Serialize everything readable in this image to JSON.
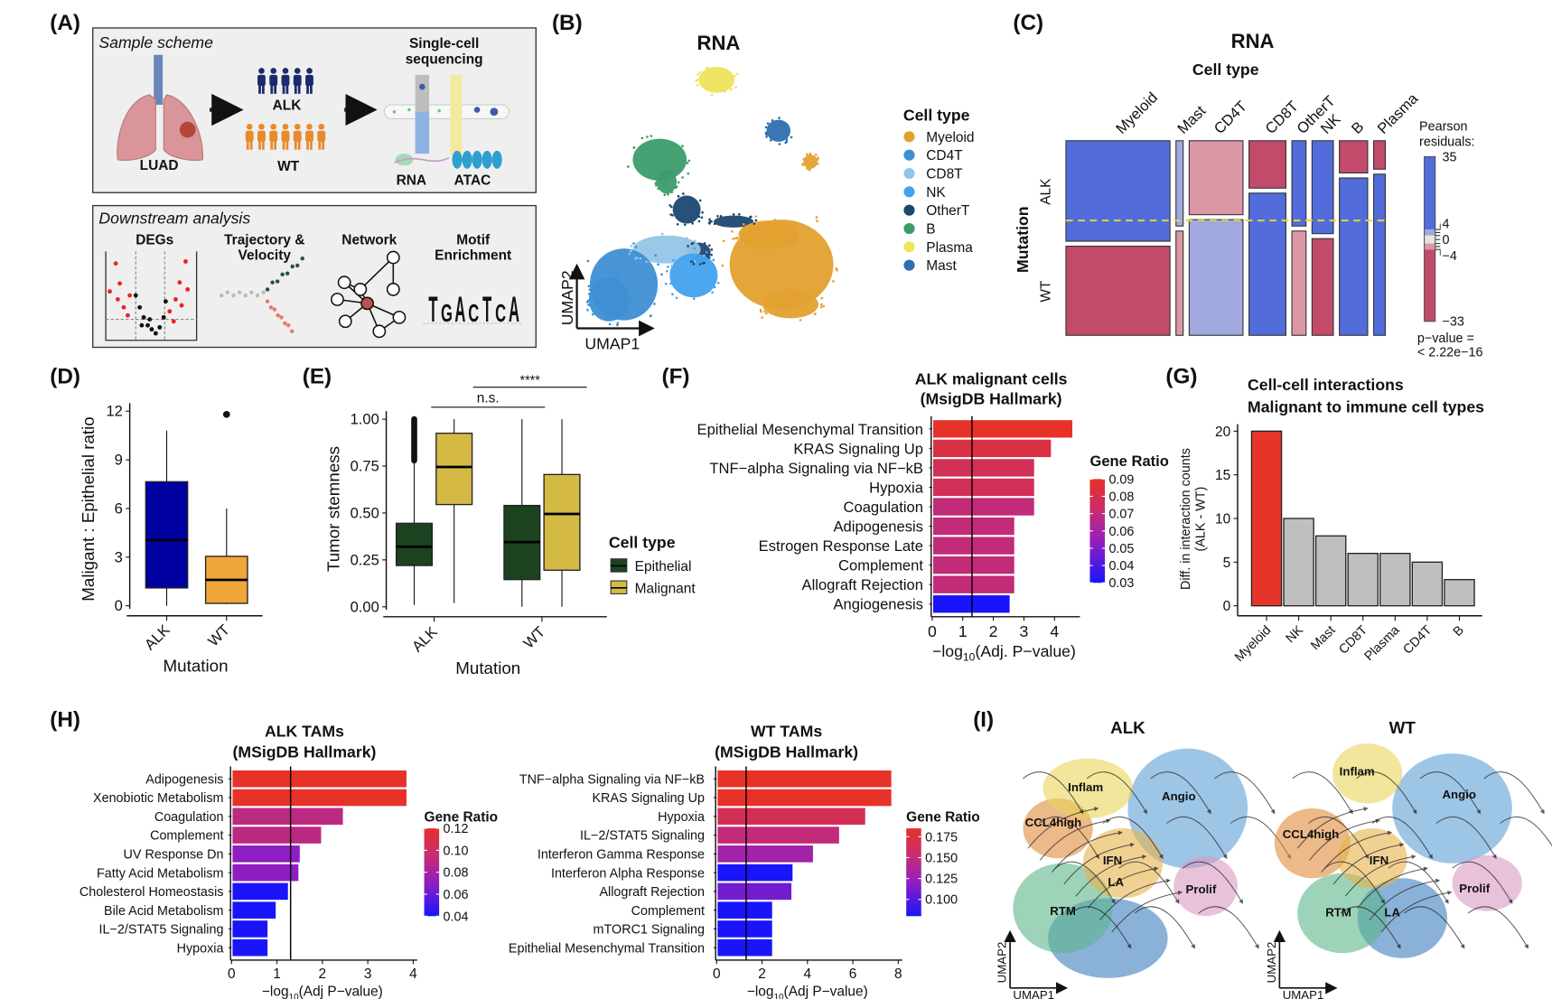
{
  "panel_labels": [
    "(A)",
    "(B)",
    "(C)",
    "(D)",
    "(E)",
    "(F)",
    "(G)",
    "(H)",
    "(I)"
  ],
  "panel_a": {
    "sample_scheme": "Sample scheme",
    "luad": "LUAD",
    "alk": "ALK",
    "wt": "WT",
    "single_cell_line1": "Single-cell",
    "single_cell_line2": "sequencing",
    "rna": "RNA",
    "atac": "ATAC",
    "downstream": "Downstream analysis",
    "degs": "DEGs",
    "trajectory_line1": "Trajectory &",
    "trajectory_line2": "Velocity",
    "network": "Network",
    "motif_line1": "Motif",
    "motif_line2": "Enrichment",
    "motif_letters": [
      "T",
      "G",
      "A",
      "C",
      "T",
      "C",
      "A"
    ],
    "colors": {
      "alk_people": "#1B2A6B",
      "wt_people": "#E8892B",
      "lung": "#D9959A",
      "tumor": "#B5473A"
    }
  },
  "chart_data": [
    {
      "id": "B",
      "type": "scatter",
      "title": "RNA",
      "xlabel": "UMAP1",
      "ylabel": "UMAP2",
      "legend_title": "Cell type",
      "legend_position": "right",
      "categories": [
        {
          "name": "Myeloid",
          "color": "#E3A02F"
        },
        {
          "name": "CD4T",
          "color": "#3E8ED3"
        },
        {
          "name": "CD8T",
          "color": "#93C5E8"
        },
        {
          "name": "NK",
          "color": "#43A2EE"
        },
        {
          "name": "OtherT",
          "color": "#1D4870"
        },
        {
          "name": "B",
          "color": "#3C9C6C"
        },
        {
          "name": "Plasma",
          "color": "#ECE45A"
        },
        {
          "name": "Mast",
          "color": "#2F6EB0"
        }
      ]
    },
    {
      "id": "C",
      "type": "mosaic",
      "title": "RNA",
      "xlabel": "Cell type",
      "ylabel": "Mutation",
      "rows": [
        "ALK",
        "WT"
      ],
      "columns": [
        {
          "name": "Myeloid",
          "share": 0.375,
          "alk_fraction": 0.53,
          "alk_residual": "strong-positive",
          "wt_residual": "strong-negative"
        },
        {
          "name": "Mast",
          "share": 0.026,
          "alk_fraction": 0.45,
          "alk_residual": "weak-positive",
          "wt_residual": "weak-negative"
        },
        {
          "name": "CD4T",
          "share": 0.194,
          "alk_fraction": 0.39,
          "alk_residual": "weak-negative",
          "wt_residual": "weak-positive"
        },
        {
          "name": "CD8T",
          "share": 0.133,
          "alk_fraction": 0.25,
          "alk_residual": "strong-negative",
          "wt_residual": "strong-positive"
        },
        {
          "name": "OtherT",
          "share": 0.051,
          "alk_fraction": 0.45,
          "alk_residual": "strong-positive",
          "wt_residual": "weak-negative"
        },
        {
          "name": "NK",
          "share": 0.077,
          "alk_fraction": 0.49,
          "alk_residual": "strong-positive",
          "wt_residual": "strong-negative"
        },
        {
          "name": "B",
          "share": 0.102,
          "alk_fraction": 0.17,
          "alk_residual": "strong-negative",
          "wt_residual": "strong-positive"
        },
        {
          "name": "Plasma",
          "share": 0.042,
          "alk_fraction": 0.15,
          "alk_residual": "strong-negative",
          "wt_residual": "strong-positive"
        }
      ],
      "residual_colors": {
        "strong-positive": "#526CDB",
        "weak-positive": "#A0A8E0",
        "weak-negative": "#DC97A4",
        "strong-negative": "#C24A6A"
      },
      "legend_title_line1": "Pearson",
      "legend_title_line2": "residuals:",
      "legend_ticks": [
        "35",
        "4",
        "0",
        "−4",
        "−33"
      ],
      "pvalue_line1": "p−value =",
      "pvalue_line2": "< 2.22e−16"
    },
    {
      "id": "D",
      "type": "box",
      "xlabel": "Mutation",
      "ylabel": "Maligant : Epithelial ratio",
      "ylim": [
        0,
        12
      ],
      "yticks": [
        0,
        3,
        6,
        9,
        12
      ],
      "categories": [
        "ALK",
        "WT"
      ],
      "boxes": [
        {
          "name": "ALK",
          "min": 0,
          "q1": 1.1,
          "median": 4.05,
          "q3": 7.65,
          "max": 10.8,
          "outliers": [],
          "color": "#0000A0"
        },
        {
          "name": "WT",
          "min": 0.1,
          "q1": 0.15,
          "median": 1.6,
          "q3": 3.05,
          "max": 6.0,
          "outliers": [
            11.8
          ],
          "color": "#F0A638"
        }
      ]
    },
    {
      "id": "E",
      "type": "box",
      "xlabel": "Mutation",
      "ylabel": "Tumor stemness",
      "ylim": [
        0,
        1
      ],
      "yticks": [
        "0.00",
        "0.25",
        "0.50",
        "0.75",
        "1.00"
      ],
      "categories": [
        "ALK",
        "WT"
      ],
      "legend_title": "Cell type",
      "legend_position": "right",
      "series": [
        {
          "name": "Epithelial",
          "color": "#1C4220",
          "boxes": [
            {
              "category": "ALK",
              "min": 0.01,
              "q1": 0.22,
              "median": 0.32,
              "q3": 0.445,
              "max": 0.78,
              "outliers_range": [
                0.78,
                1.0
              ]
            },
            {
              "category": "WT",
              "min": 0.0,
              "q1": 0.145,
              "median": 0.345,
              "q3": 0.54,
              "max": 1.0
            }
          ]
        },
        {
          "name": "Malignant",
          "color": "#D4BA45",
          "boxes": [
            {
              "category": "ALK",
              "min": 0.02,
              "q1": 0.545,
              "median": 0.745,
              "q3": 0.925,
              "max": 1.0
            },
            {
              "category": "WT",
              "min": 0.0,
              "q1": 0.195,
              "median": 0.495,
              "q3": 0.705,
              "max": 1.0
            }
          ]
        }
      ],
      "annotations": [
        {
          "label": "n.s.",
          "from": "ALK",
          "to": "WT Epithelial"
        },
        {
          "label": "****",
          "from": "ALK Malignant",
          "to": "WT Malignant"
        }
      ]
    },
    {
      "id": "F",
      "type": "bar",
      "orientation": "horizontal",
      "title_line1": "ALK malignant cells",
      "title_line2": "(MsigDB Hallmark)",
      "xlabel_pre": "−log",
      "xlabel_sub": "10",
      "xlabel_post": "(Adj. P−value)",
      "xlim": [
        0,
        4.7
      ],
      "xticks": [
        0,
        1,
        2,
        3,
        4
      ],
      "threshold": 1.3,
      "legend_title": "Gene Ratio",
      "color_range": [
        0.03,
        0.09
      ],
      "legend_ticks": [
        "0.09",
        "0.08",
        "0.07",
        "0.06",
        "0.05",
        "0.04",
        "0.03"
      ],
      "highlight_color": "#E0302A",
      "bars": [
        {
          "label": "Epithelial Mesenchymal Transition",
          "value": 4.55,
          "gene_ratio": 0.09,
          "highlight": true
        },
        {
          "label": "KRAS Signaling Up",
          "value": 3.85,
          "gene_ratio": 0.083,
          "highlight": false
        },
        {
          "label": "TNF−alpha Signaling via NF−kB",
          "value": 3.3,
          "gene_ratio": 0.078,
          "highlight": false
        },
        {
          "label": "Hypoxia",
          "value": 3.3,
          "gene_ratio": 0.078,
          "highlight": true
        },
        {
          "label": "Coagulation",
          "value": 3.3,
          "gene_ratio": 0.07,
          "highlight": false
        },
        {
          "label": "Adipogenesis",
          "value": 2.65,
          "gene_ratio": 0.07,
          "highlight": false
        },
        {
          "label": "Estrogen Response Late",
          "value": 2.65,
          "gene_ratio": 0.07,
          "highlight": false
        },
        {
          "label": "Complement",
          "value": 2.65,
          "gene_ratio": 0.07,
          "highlight": false
        },
        {
          "label": "Allograft Rejection",
          "value": 2.65,
          "gene_ratio": 0.07,
          "highlight": false
        },
        {
          "label": "Angiogenesis",
          "value": 2.5,
          "gene_ratio": 0.03,
          "highlight": false
        }
      ]
    },
    {
      "id": "G",
      "type": "bar",
      "title_line1": "Cell-cell interactions",
      "title_line2": "Malignant to immune cell types",
      "ylabel_line1": "Diff. in interaction counts",
      "ylabel_line2": "(ALK - WT)",
      "ylim": [
        0,
        20
      ],
      "yticks": [
        0,
        5,
        10,
        15,
        20
      ],
      "categories": [
        "Myeloid",
        "NK",
        "Mast",
        "CD8T",
        "Plasma",
        "CD4T",
        "B"
      ],
      "values": [
        20,
        10,
        8,
        6,
        6,
        5,
        3
      ],
      "colors": [
        "#E5352A",
        "#BFBFBF",
        "#BFBFBF",
        "#BFBFBF",
        "#BFBFBF",
        "#BFBFBF",
        "#BFBFBF"
      ]
    },
    {
      "id": "H-ALK",
      "type": "bar",
      "orientation": "horizontal",
      "title_line1": "ALK TAMs",
      "title_line2": "(MSigDB Hallmark)",
      "xlabel_pre": "−log",
      "xlabel_sub": "10",
      "xlabel_post": "(Adj P−value)",
      "xlim": [
        0,
        4
      ],
      "xticks": [
        0,
        1,
        2,
        3,
        4
      ],
      "threshold": 1.3,
      "legend_title": "Gene Ratio",
      "color_range": [
        0.04,
        0.12
      ],
      "legend_ticks": [
        "0.12",
        "0.10",
        "0.08",
        "0.06",
        "0.04"
      ],
      "bars": [
        {
          "label": "Adipogenesis",
          "value": 3.83,
          "gene_ratio": 0.12
        },
        {
          "label": "Xenobiotic Metabolism",
          "value": 3.83,
          "gene_ratio": 0.12
        },
        {
          "label": "Coagulation",
          "value": 2.43,
          "gene_ratio": 0.09
        },
        {
          "label": "Complement",
          "value": 1.95,
          "gene_ratio": 0.09
        },
        {
          "label": "UV Response Dn",
          "value": 1.48,
          "gene_ratio": 0.07
        },
        {
          "label": "Fatty Acid Metabolism",
          "value": 1.45,
          "gene_ratio": 0.07
        },
        {
          "label": "Cholesterol Homeostasis",
          "value": 1.22,
          "gene_ratio": 0.04
        },
        {
          "label": "Bile Acid Metabolism",
          "value": 0.95,
          "gene_ratio": 0.04
        },
        {
          "label": "IL−2/STAT5 Signaling",
          "value": 0.77,
          "gene_ratio": 0.04
        },
        {
          "label": "Hypoxia",
          "value": 0.77,
          "gene_ratio": 0.04
        }
      ]
    },
    {
      "id": "H-WT",
      "type": "bar",
      "orientation": "horizontal",
      "title_line1": "WT TAMs",
      "title_line2": "(MSigDB Hallmark)",
      "xlabel_pre": "−log",
      "xlabel_sub": "10",
      "xlabel_post": "(Adj P−value)",
      "xlim": [
        0,
        8
      ],
      "xticks": [
        0,
        2,
        4,
        6,
        8
      ],
      "threshold": 1.3,
      "legend_title": "Gene Ratio",
      "color_range": [
        0.08,
        0.185
      ],
      "legend_ticks": [
        "0.175",
        "0.150",
        "0.125",
        "0.100"
      ],
      "bars": [
        {
          "label": "TNF−alpha Signaling via NF−kB",
          "value": 7.65,
          "gene_ratio": 0.185
        },
        {
          "label": "KRAS Signaling Up",
          "value": 7.65,
          "gene_ratio": 0.185
        },
        {
          "label": "Hypoxia",
          "value": 6.5,
          "gene_ratio": 0.165
        },
        {
          "label": "IL−2/STAT5 Signaling",
          "value": 5.35,
          "gene_ratio": 0.15
        },
        {
          "label": "Interferon Gamma Response",
          "value": 4.2,
          "gene_ratio": 0.13
        },
        {
          "label": "Interferon Alpha Response",
          "value": 3.3,
          "gene_ratio": 0.08
        },
        {
          "label": "Allograft Rejection",
          "value": 3.25,
          "gene_ratio": 0.11
        },
        {
          "label": "Complement",
          "value": 2.4,
          "gene_ratio": 0.08
        },
        {
          "label": "mTORC1 Signaling",
          "value": 2.4,
          "gene_ratio": 0.08
        },
        {
          "label": "Epithelial Mesenchymal Transition",
          "value": 2.4,
          "gene_ratio": 0.08
        }
      ]
    },
    {
      "id": "I",
      "type": "scatter",
      "xlabel": "UMAP1",
      "ylabel": "UMAP2",
      "panels": [
        {
          "title": "ALK",
          "clusters": [
            "Inflam",
            "CCL4high",
            "Angio",
            "IFN",
            "LA",
            "Prolif",
            "RTM"
          ]
        },
        {
          "title": "WT",
          "clusters": [
            "Inflam",
            "Angio",
            "CCL4high",
            "IFN",
            "Prolif",
            "RTM",
            "LA"
          ]
        }
      ],
      "cluster_colors": {
        "Inflam": "#E9D45A",
        "CCL4high": "#E08A3A",
        "Angio": "#5C9FD6",
        "IFN": "#E8B34A",
        "LA": "#3C7FBF",
        "Prolif": "#D89AC2",
        "RTM": "#5BB58A"
      }
    }
  ]
}
